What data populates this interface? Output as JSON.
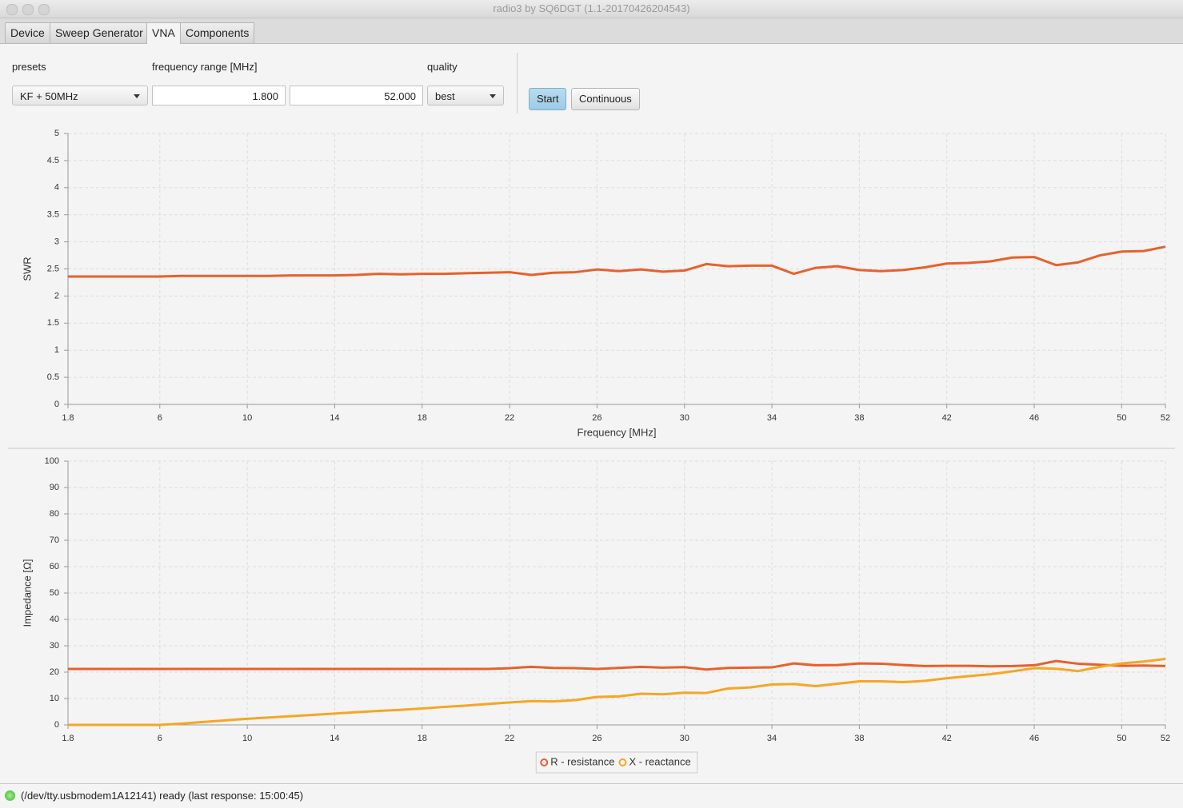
{
  "window": {
    "title": "radio3 by SQ6DGT (1.1-20170426204543)"
  },
  "tabs": [
    "Device",
    "Sweep Generator",
    "VNA",
    "Components"
  ],
  "controls": {
    "presets_label": "presets",
    "preset": "KF + 50MHz",
    "range_label": "frequency range [MHz]",
    "from": "1.800",
    "to": "52.000",
    "quality_label": "quality",
    "quality": "best",
    "start": "Start",
    "continuous": "Continuous"
  },
  "status": "(/dev/tty.usbmodem1A12141) ready (last response: 15:00:45)",
  "chart_data": [
    {
      "type": "line",
      "ylabel": "SWR",
      "xlabel": "Frequency [MHz]",
      "grid": true,
      "xlim": [
        1.8,
        52
      ],
      "xticks": [
        1.8,
        6,
        10,
        14,
        18,
        22,
        26,
        30,
        34,
        38,
        42,
        46,
        50,
        52
      ],
      "ylim": [
        0,
        5
      ],
      "yticks": [
        0,
        0.5,
        1,
        1.5,
        2,
        2.5,
        3,
        3.5,
        4,
        4.5,
        5
      ],
      "x": [
        1.8,
        3,
        4,
        5,
        6,
        7,
        8,
        9,
        10,
        11,
        12,
        13,
        14,
        15,
        16,
        17,
        18,
        19,
        20,
        21,
        22,
        23,
        24,
        25,
        26,
        27,
        28,
        29,
        30,
        31,
        32,
        33,
        34,
        35,
        36,
        37,
        38,
        39,
        40,
        41,
        42,
        43,
        44,
        45,
        46,
        47,
        48,
        49,
        50,
        51,
        52
      ],
      "series": [
        {
          "color": "#e8602c",
          "values": [
            2.36,
            2.36,
            2.36,
            2.36,
            2.36,
            2.37,
            2.37,
            2.37,
            2.37,
            2.37,
            2.38,
            2.38,
            2.38,
            2.39,
            2.41,
            2.4,
            2.41,
            2.41,
            2.42,
            2.43,
            2.44,
            2.39,
            2.43,
            2.44,
            2.49,
            2.46,
            2.49,
            2.45,
            2.47,
            2.59,
            2.55,
            2.56,
            2.56,
            2.41,
            2.52,
            2.55,
            2.48,
            2.46,
            2.48,
            2.53,
            2.6,
            2.61,
            2.64,
            2.71,
            2.72,
            2.57,
            2.62,
            2.75,
            2.82,
            2.83,
            2.91
          ]
        }
      ]
    },
    {
      "type": "line",
      "ylabel": "Impedance [Ω]",
      "grid": true,
      "xlim": [
        1.8,
        52
      ],
      "xticks": [
        1.8,
        6,
        10,
        14,
        18,
        22,
        26,
        30,
        34,
        38,
        42,
        46,
        50,
        52
      ],
      "ylim": [
        0,
        100
      ],
      "yticks": [
        0,
        10,
        20,
        30,
        40,
        50,
        60,
        70,
        80,
        90,
        100
      ],
      "x": [
        1.8,
        3,
        4,
        5,
        6,
        7,
        8,
        9,
        10,
        11,
        12,
        13,
        14,
        15,
        16,
        17,
        18,
        19,
        20,
        21,
        22,
        23,
        24,
        25,
        26,
        27,
        28,
        29,
        30,
        31,
        32,
        33,
        34,
        35,
        36,
        37,
        38,
        39,
        40,
        41,
        42,
        43,
        44,
        45,
        46,
        47,
        48,
        49,
        50,
        51,
        52
      ],
      "series": [
        {
          "name": "R - resistance",
          "color": "#e8602c",
          "values": [
            21.2,
            21.2,
            21.2,
            21.2,
            21.2,
            21.2,
            21.2,
            21.2,
            21.2,
            21.2,
            21.2,
            21.2,
            21.2,
            21.2,
            21.2,
            21.2,
            21.2,
            21.2,
            21.2,
            21.2,
            21.5,
            22.0,
            21.6,
            21.5,
            21.2,
            21.6,
            22.0,
            21.7,
            21.9,
            21.0,
            21.6,
            21.7,
            21.8,
            23.3,
            22.6,
            22.7,
            23.3,
            23.2,
            22.7,
            22.3,
            22.4,
            22.4,
            22.2,
            22.3,
            22.6,
            24.2,
            23.2,
            22.8,
            22.4,
            22.5,
            22.3
          ]
        },
        {
          "name": "X - reactance",
          "color": "#f5a623",
          "values": [
            0,
            0,
            0,
            0,
            0,
            0.5,
            1.1,
            1.7,
            2.3,
            2.8,
            3.3,
            3.8,
            4.3,
            4.8,
            5.3,
            5.7,
            6.2,
            6.8,
            7.3,
            7.9,
            8.5,
            9,
            8.9,
            9.4,
            10.6,
            10.8,
            11.8,
            11.6,
            12.2,
            12.1,
            13.8,
            14.2,
            15.3,
            15.5,
            14.7,
            15.6,
            16.5,
            16.5,
            16.2,
            16.7,
            17.7,
            18.5,
            19.2,
            20.3,
            21.5,
            21.3,
            20.4,
            22,
            23.3,
            24,
            25
          ]
        }
      ]
    }
  ]
}
